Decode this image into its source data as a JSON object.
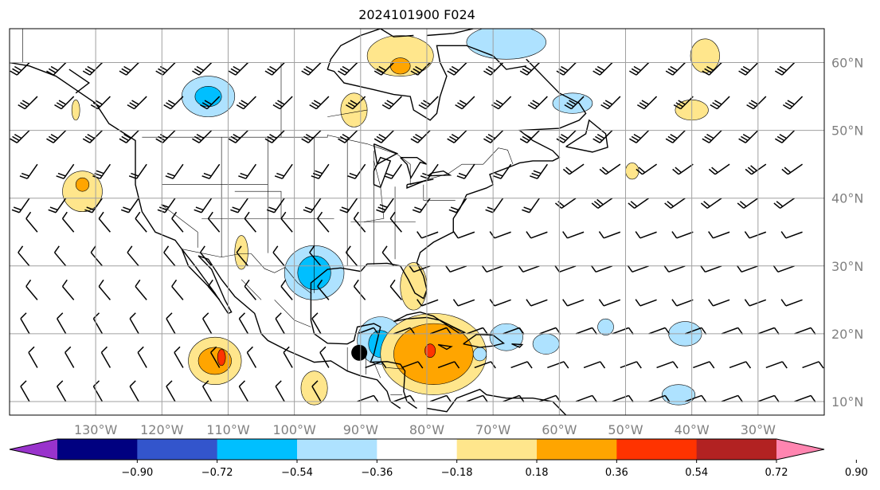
{
  "title": "2024101900 F024",
  "map": {
    "projection": "cylindrical",
    "lon_range": [
      -143,
      -20
    ],
    "lat_range": [
      8,
      65
    ],
    "gridlines": true,
    "lon_ticks": [
      {
        "value": -130,
        "label": "130°W"
      },
      {
        "value": -120,
        "label": "120°W"
      },
      {
        "value": -110,
        "label": "110°W"
      },
      {
        "value": -100,
        "label": "100°W"
      },
      {
        "value": -90,
        "label": "90°W"
      },
      {
        "value": -80,
        "label": "80°W"
      },
      {
        "value": -70,
        "label": "70°W"
      },
      {
        "value": -60,
        "label": "60°W"
      },
      {
        "value": -50,
        "label": "50°W"
      },
      {
        "value": -40,
        "label": "40°W"
      },
      {
        "value": -30,
        "label": "30°W"
      }
    ],
    "lat_ticks": [
      {
        "value": 60,
        "label": "60°N"
      },
      {
        "value": 50,
        "label": "50°N"
      },
      {
        "value": 40,
        "label": "40°N"
      },
      {
        "value": 30,
        "label": "30°N"
      },
      {
        "value": 20,
        "label": "20°N"
      },
      {
        "value": 10,
        "label": "10°N"
      }
    ],
    "lat_label_position": "right"
  },
  "colorbar": {
    "orientation": "horizontal",
    "extend": "both",
    "ticks": [
      "−0.90",
      "−0.72",
      "−0.54",
      "−0.36",
      "−0.18",
      "0.18",
      "0.36",
      "0.54",
      "0.72",
      "0.90"
    ],
    "colors": [
      "#9933cc",
      "#000080",
      "#3355cc",
      "#00bfff",
      "#aee2ff",
      "#ffffff",
      "#ffe68c",
      "#ffa500",
      "#ff3300",
      "#b22222",
      "#ff85b0"
    ]
  },
  "anomaly_regions": [
    {
      "lon": -113,
      "lat": 55,
      "rx": 4,
      "ry": 3,
      "level": 4
    },
    {
      "lon": -113,
      "lat": 55,
      "rx": 2,
      "ry": 1.5,
      "level": 3
    },
    {
      "lon": -68,
      "lat": 63,
      "rx": 6,
      "ry": 2.5,
      "level": 4
    },
    {
      "lon": -84,
      "lat": 61,
      "rx": 5,
      "ry": 3,
      "level": 6
    },
    {
      "lon": -84,
      "lat": 59.5,
      "rx": 1.5,
      "ry": 1.2,
      "level": 7
    },
    {
      "lon": -91,
      "lat": 53,
      "rx": 2,
      "ry": 2.5,
      "level": 6
    },
    {
      "lon": -58,
      "lat": 54,
      "rx": 3,
      "ry": 1.5,
      "level": 4
    },
    {
      "lon": -38,
      "lat": 61,
      "rx": 2.2,
      "ry": 2.5,
      "level": 6
    },
    {
      "lon": -40,
      "lat": 53,
      "rx": 2.5,
      "ry": 1.5,
      "level": 6
    },
    {
      "lon": -132,
      "lat": 41,
      "rx": 3,
      "ry": 3,
      "level": 6
    },
    {
      "lon": -132,
      "lat": 42,
      "rx": 1,
      "ry": 1,
      "level": 7
    },
    {
      "lon": -97,
      "lat": 29,
      "rx": 4.5,
      "ry": 4,
      "level": 4
    },
    {
      "lon": -97,
      "lat": 29,
      "rx": 2.5,
      "ry": 2.5,
      "level": 3
    },
    {
      "lon": -87,
      "lat": 19,
      "rx": 3.5,
      "ry": 3.5,
      "level": 4
    },
    {
      "lon": -87,
      "lat": 18.5,
      "rx": 1.8,
      "ry": 2,
      "level": 3
    },
    {
      "lon": -79,
      "lat": 17,
      "rx": 8,
      "ry": 6,
      "level": 6
    },
    {
      "lon": -79,
      "lat": 17,
      "rx": 6,
      "ry": 4.5,
      "level": 7
    },
    {
      "lon": -79.5,
      "lat": 17.5,
      "rx": 0.8,
      "ry": 1,
      "level": 8
    },
    {
      "lon": -82,
      "lat": 27,
      "rx": 2,
      "ry": 3.5,
      "level": 6
    },
    {
      "lon": -112,
      "lat": 16,
      "rx": 4,
      "ry": 3.5,
      "level": 6
    },
    {
      "lon": -112,
      "lat": 16,
      "rx": 2.5,
      "ry": 2,
      "level": 7
    },
    {
      "lon": -111,
      "lat": 16.5,
      "rx": 0.6,
      "ry": 1.2,
      "level": 8
    },
    {
      "lon": -97,
      "lat": 12,
      "rx": 2,
      "ry": 2.5,
      "level": 6
    },
    {
      "lon": -108,
      "lat": 32,
      "rx": 1,
      "ry": 2.5,
      "level": 6
    },
    {
      "lon": -68,
      "lat": 19.5,
      "rx": 2.5,
      "ry": 2,
      "level": 4
    },
    {
      "lon": -62,
      "lat": 18.5,
      "rx": 2,
      "ry": 1.5,
      "level": 4
    },
    {
      "lon": -41,
      "lat": 20,
      "rx": 2.5,
      "ry": 1.8,
      "level": 4
    },
    {
      "lon": -42,
      "lat": 11,
      "rx": 2.5,
      "ry": 1.5,
      "level": 4
    },
    {
      "lon": -53,
      "lat": 21,
      "rx": 1.2,
      "ry": 1.2,
      "level": 4
    },
    {
      "lon": -49,
      "lat": 44,
      "rx": 1,
      "ry": 1.2,
      "level": 6
    },
    {
      "lon": -133,
      "lat": 53,
      "rx": 0.6,
      "ry": 1.5,
      "level": 6
    },
    {
      "lon": -72,
      "lat": 17,
      "rx": 1,
      "ry": 1,
      "level": 4
    }
  ]
}
